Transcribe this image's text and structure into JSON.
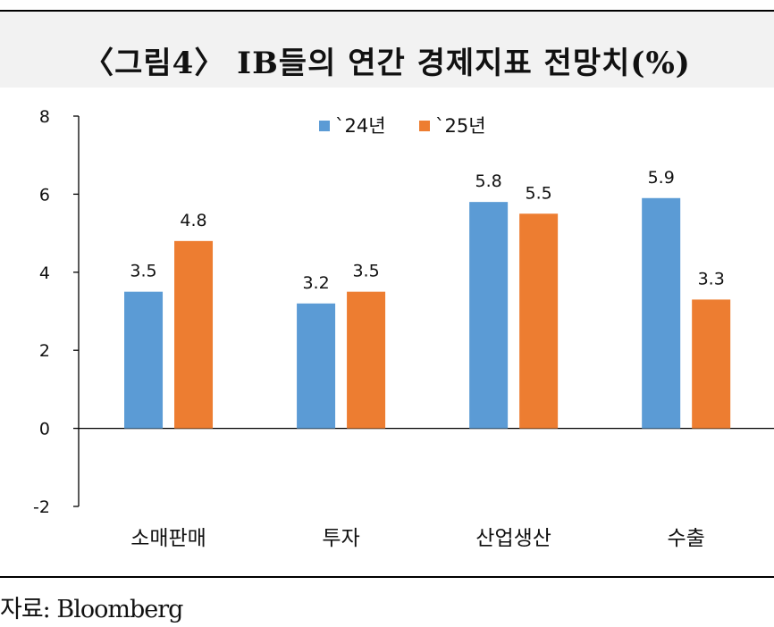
{
  "title": "〈그림4〉 IB들의 연간 경제지표 전망치(%)",
  "source": "자료: Bloomberg",
  "chart_data": {
    "type": "bar",
    "categories": [
      "소매판매",
      "투자",
      "산업생산",
      "수출"
    ],
    "series": [
      {
        "name": "`24년",
        "color": "#5b9bd5",
        "values": [
          3.5,
          3.2,
          5.8,
          5.9
        ]
      },
      {
        "name": "`25년",
        "color": "#ed7d31",
        "values": [
          4.8,
          3.5,
          5.5,
          3.3
        ]
      }
    ],
    "ylim": [
      -2,
      8
    ],
    "yticks": [
      8,
      6,
      4,
      2,
      0,
      -2
    ],
    "legend": "top-center",
    "grid": false
  }
}
